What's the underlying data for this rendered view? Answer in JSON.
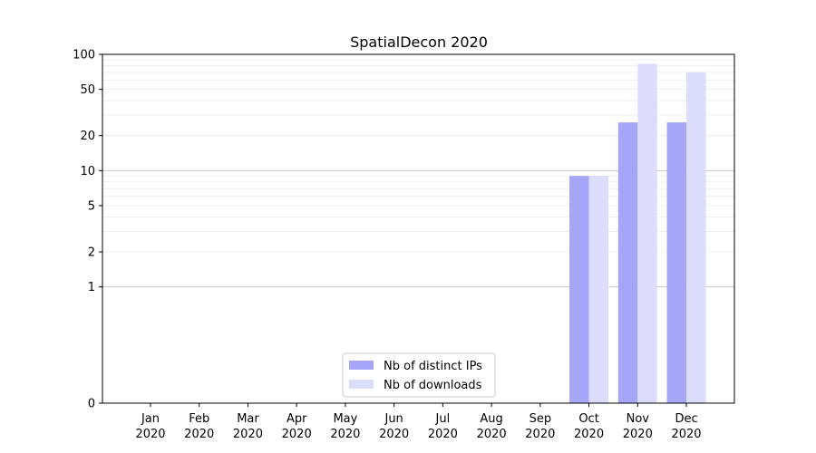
{
  "chart_data": {
    "type": "bar",
    "title": "SpatialDecon 2020",
    "xlabel": "",
    "ylabel": "",
    "y_scale": "symlog",
    "ylim": [
      0,
      100
    ],
    "y_ticks": [
      0,
      1,
      2,
      5,
      10,
      20,
      50,
      100
    ],
    "grid": "horizontal",
    "legend_position": "lower center",
    "categories": [
      [
        "Jan",
        "2020"
      ],
      [
        "Feb",
        "2020"
      ],
      [
        "Mar",
        "2020"
      ],
      [
        "Apr",
        "2020"
      ],
      [
        "May",
        "2020"
      ],
      [
        "Jun",
        "2020"
      ],
      [
        "Jul",
        "2020"
      ],
      [
        "Aug",
        "2020"
      ],
      [
        "Sep",
        "2020"
      ],
      [
        "Oct",
        "2020"
      ],
      [
        "Nov",
        "2020"
      ],
      [
        "Dec",
        "2020"
      ]
    ],
    "series": [
      {
        "name": "Nb of distinct IPs",
        "color": "#a6a6f8",
        "values": [
          0,
          0,
          0,
          0,
          0,
          0,
          0,
          0,
          0,
          9,
          26,
          26
        ]
      },
      {
        "name": "Nb of downloads",
        "color": "#dcdcfc",
        "values": [
          0,
          0,
          0,
          0,
          0,
          0,
          0,
          0,
          0,
          9,
          83,
          70
        ]
      }
    ]
  }
}
